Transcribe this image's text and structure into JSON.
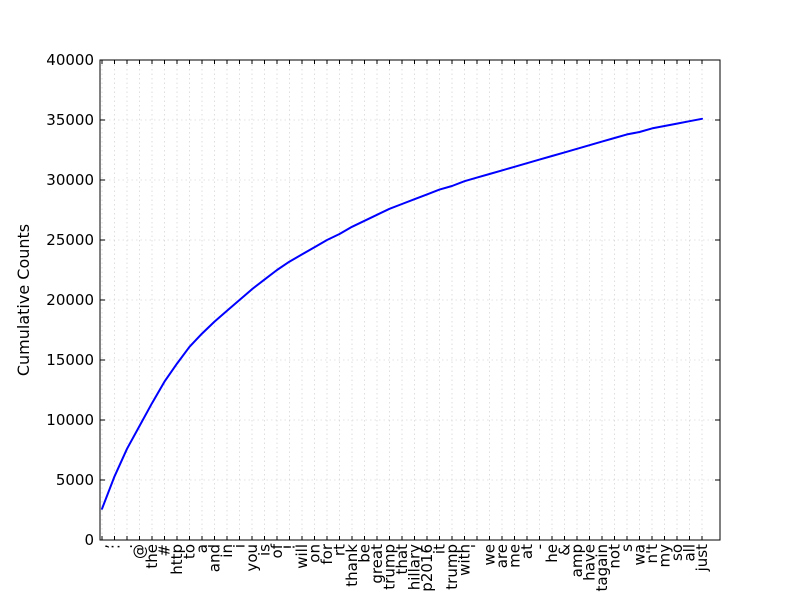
{
  "chart_data": {
    "type": "line",
    "title": "",
    "xlabel": "",
    "ylabel": "Cumulative Counts",
    "ylim": [
      0,
      40000
    ],
    "yticks": [
      0,
      5000,
      10000,
      15000,
      20000,
      25000,
      30000,
      35000,
      40000
    ],
    "grid": true,
    "categories": [
      ",",
      ":",
      ".",
      "@",
      "the",
      "#",
      "http",
      "to",
      "a",
      "and",
      "in",
      "i",
      "you",
      "is",
      "of",
      "!",
      "will",
      "on",
      "for",
      "rt",
      "thank",
      "be",
      "great",
      "trump",
      "that",
      "hillary",
      "p2016",
      "it",
      "trump",
      "with",
      "'",
      "we",
      "are",
      "me",
      "at",
      "-",
      "he",
      "&",
      "amp",
      "have",
      "tagain",
      "not",
      "s",
      "wa",
      "n't",
      "my",
      "so",
      "all",
      "just"
    ],
    "series": [
      {
        "color": "#0000ff",
        "values": [
          2600,
          5300,
          7600,
          9500,
          11400,
          13200,
          14700,
          16100,
          17200,
          18200,
          19100,
          20000,
          20900,
          21700,
          22500,
          23200,
          23800,
          24400,
          25000,
          25500,
          26100,
          26600,
          27100,
          27600,
          28000,
          28400,
          28800,
          29200,
          29500,
          29900,
          30200,
          30500,
          30800,
          31100,
          31400,
          31700,
          32000,
          32300,
          32600,
          32900,
          33200,
          33500,
          33800,
          34000,
          34300,
          34500,
          34700,
          34900,
          35100
        ]
      }
    ]
  }
}
